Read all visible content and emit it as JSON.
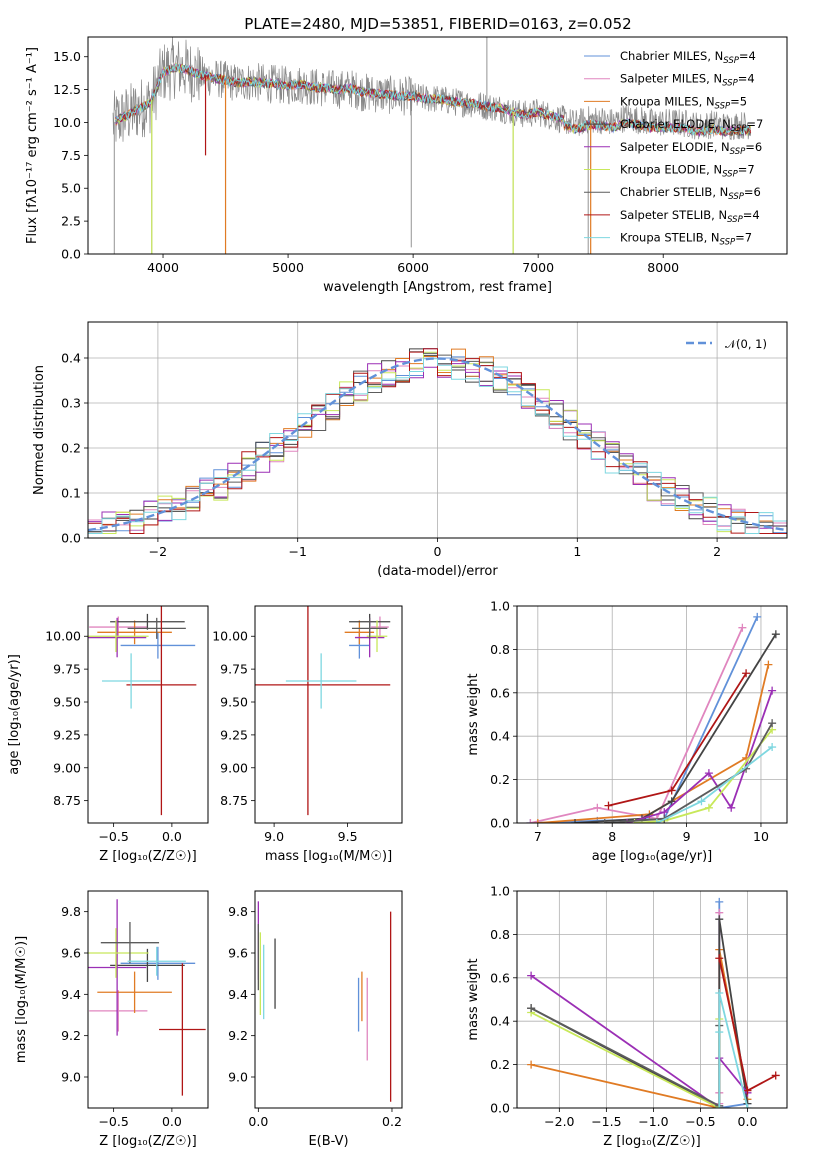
{
  "figure": {
    "title": "PLATE=2480, MJD=53851, FIBERID=0163, z=0.052"
  },
  "colors": {
    "series": [
      "#6191d9",
      "#e086bf",
      "#e07b24",
      "#444444",
      "#9b2fb5",
      "#c8e85a",
      "#5c5c5c",
      "#b01616",
      "#7ed7e0"
    ],
    "grid": "#b0b0b0",
    "normal_line": "#6191d9"
  },
  "chart_data": [
    {
      "id": "spectrum",
      "type": "line",
      "title": "PLATE=2480, MJD=53851, FIBERID=0163, z=0.052",
      "xlabel": "wavelength [Angstrom, rest frame]",
      "ylabel": "Flux [fλ10⁻¹⁷ erg cm⁻² s⁻¹ A⁻¹]",
      "xlim": [
        3400,
        8990
      ],
      "ylim": [
        0,
        16.5
      ],
      "xticks": [
        "4000",
        "5000",
        "6000",
        "7000",
        "8000"
      ],
      "yticks": [
        "0.0",
        "2.5",
        "5.0",
        "7.5",
        "10.0",
        "12.5",
        "15.0"
      ],
      "grid": false,
      "legend_position": "top-right",
      "legend": [
        "Chabrier MILES, NSSP=4",
        "Salpeter MILES, NSSP=4",
        "Kroupa MILES, NSSP=5",
        "Chabrier ELODIE, NSSP=7",
        "Salpeter ELODIE, NSSP=6",
        "Kroupa ELODIE, NSSP=7",
        "Chabrier STELIB, NSSP=6",
        "Salpeter STELIB, NSSP=4",
        "Kroupa STELIB, NSSP=7"
      ],
      "data_series": {
        "name": "data",
        "color": "#888888",
        "x": [
          3600,
          3700,
          3800,
          3900,
          4000,
          4100,
          4200,
          4300,
          4400,
          4500,
          4600,
          4700,
          4800,
          4900,
          5000,
          5100,
          5200,
          5300,
          5400,
          5500,
          5600,
          5700,
          5800,
          5900,
          6000,
          6100,
          6200,
          6300,
          6400,
          6500,
          6600,
          6700,
          6800,
          6900,
          7000,
          7100,
          7200,
          7300,
          7400,
          7500,
          7600,
          7700,
          7800,
          7900,
          8000,
          8100,
          8200,
          8300,
          8400,
          8500,
          8600,
          8700
        ],
        "y": [
          10.0,
          10.5,
          11.0,
          11.5,
          13.8,
          14.2,
          14.0,
          13.6,
          13.4,
          13.2,
          13.0,
          13.1,
          13.0,
          12.9,
          12.8,
          12.9,
          12.7,
          12.6,
          12.5,
          12.6,
          12.3,
          12.2,
          12.1,
          12.0,
          12.0,
          11.8,
          11.8,
          11.6,
          11.5,
          11.4,
          11.2,
          11.1,
          10.8,
          10.6,
          10.8,
          10.5,
          10.2,
          9.9,
          10.2,
          10.2,
          10.0,
          10.4,
          10.2,
          10.0,
          10.0,
          10.0,
          9.9,
          9.7,
          9.9,
          9.7,
          9.8,
          9.8
        ]
      },
      "spikes": [
        {
          "x": 3610,
          "y": 0.0
        },
        {
          "x": 3910,
          "y": 0.0
        },
        {
          "x": 4500,
          "y": 0.0
        },
        {
          "x": 5985,
          "y": 0.5
        },
        {
          "x": 6590,
          "y": 16.5
        },
        {
          "x": 6800,
          "y": 0.0
        },
        {
          "x": 7400,
          "y": 0.0
        }
      ]
    },
    {
      "id": "residuals",
      "type": "histogram",
      "xlabel": "(data-model)/error",
      "ylabel": "Normed distribution",
      "xlim": [
        -2.5,
        2.5
      ],
      "ylim": [
        0,
        0.48
      ],
      "xticks": [
        "−2",
        "−1",
        "0",
        "1",
        "2"
      ],
      "yticks": [
        "0.0",
        "0.1",
        "0.2",
        "0.3",
        "0.4"
      ],
      "grid": true,
      "legend_position": "top-right",
      "legend": [
        "𝒩(0, 1)"
      ],
      "bin_width": 0.1,
      "bin_start": -2.5
    },
    {
      "id": "age_vs_Z",
      "type": "errorbar",
      "xlabel": "Z [log₁₀(Z/Z☉)]",
      "ylabel": "age  [log₁₀(age/yr)]",
      "xlim": [
        -0.72,
        0.31
      ],
      "ylim": [
        8.58,
        10.23
      ],
      "xticks": [
        "−0.5",
        "0.0"
      ],
      "yticks": [
        "8.75",
        "9.00",
        "9.25",
        "9.50",
        "9.75",
        "10.00"
      ],
      "points": [
        {
          "x": -0.12,
          "xerr": 0.32,
          "y": 9.93,
          "yerr": 0.1
        },
        {
          "x": -0.46,
          "xerr": 0.25,
          "y": 10.07,
          "yerr": 0.08
        },
        {
          "x": -0.32,
          "xerr": 0.32,
          "y": 10.03,
          "yerr": 0.09
        },
        {
          "x": -0.21,
          "xerr": 0.32,
          "y": 10.11,
          "yerr": 0.06
        },
        {
          "x": -0.47,
          "xerr": 0.25,
          "y": 9.99,
          "yerr": 0.15
        },
        {
          "x": -0.48,
          "xerr": 0.28,
          "y": 10.0,
          "yerr": 0.12
        },
        {
          "x": -0.13,
          "xerr": 0.25,
          "y": 10.06,
          "yerr": 0.08
        },
        {
          "x": -0.09,
          "xerr": 0.3,
          "y": 9.63,
          "yerr": 0.99
        },
        {
          "x": -0.35,
          "xerr": 0.25,
          "y": 9.66,
          "yerr": 0.21
        }
      ]
    },
    {
      "id": "age_vs_mass",
      "type": "errorbar",
      "xlabel": "mass [log₁₀(M/M☉)]",
      "ylabel": "",
      "xlim": [
        8.87,
        9.87
      ],
      "ylim": [
        8.58,
        10.23
      ],
      "xticks": [
        "9.0",
        "9.5"
      ],
      "yticks": [
        "8.75",
        "9.00",
        "9.25",
        "9.50",
        "9.75",
        "10.00"
      ],
      "points": [
        {
          "x": 9.58,
          "xerr": 0.07,
          "y": 9.93,
          "yerr": 0.1
        },
        {
          "x": 9.72,
          "xerr": 0.06,
          "y": 10.07,
          "yerr": 0.08
        },
        {
          "x": 9.58,
          "xerr": 0.1,
          "y": 10.03,
          "yerr": 0.09
        },
        {
          "x": 9.65,
          "xerr": 0.14,
          "y": 10.11,
          "yerr": 0.06
        },
        {
          "x": 9.65,
          "xerr": 0.1,
          "y": 9.99,
          "yerr": 0.15
        },
        {
          "x": 9.7,
          "xerr": 0.07,
          "y": 10.0,
          "yerr": 0.12
        },
        {
          "x": 9.65,
          "xerr": 0.12,
          "y": 10.06,
          "yerr": 0.08
        },
        {
          "x": 9.23,
          "xerr": 0.56,
          "y": 9.63,
          "yerr": 0.99
        },
        {
          "x": 9.32,
          "xerr": 0.24,
          "y": 9.66,
          "yerr": 0.21
        }
      ]
    },
    {
      "id": "mass_weight_vs_age",
      "type": "line",
      "xlabel": "age  [log₁₀(age/yr)]",
      "ylabel": "mass weight",
      "xlim": [
        6.72,
        10.35
      ],
      "ylim": [
        0,
        1.0
      ],
      "xticks": [
        "7",
        "8",
        "9",
        "10"
      ],
      "yticks": [
        "0.0",
        "0.2",
        "0.4",
        "0.6",
        "0.8",
        "1.0"
      ],
      "grid": true,
      "series": [
        {
          "x": [
            6.9,
            7.8,
            8.7,
            9.95
          ],
          "y": [
            0.0,
            0.01,
            0.02,
            0.95
          ]
        },
        {
          "x": [
            6.9,
            7.8,
            8.6,
            9.75
          ],
          "y": [
            0.0,
            0.07,
            0.02,
            0.9
          ]
        },
        {
          "x": [
            7.0,
            8.5,
            9.8,
            10.1
          ],
          "y": [
            0.0,
            0.04,
            0.3,
            0.73
          ]
        },
        {
          "x": [
            7.5,
            8.4,
            8.8,
            10.2
          ],
          "y": [
            0.0,
            0.02,
            0.1,
            0.87
          ]
        },
        {
          "x": [
            8.2,
            8.7,
            9.3,
            9.6,
            10.15
          ],
          "y": [
            0.0,
            0.05,
            0.23,
            0.07,
            0.61
          ]
        },
        {
          "x": [
            8.3,
            8.7,
            9.3,
            10.15
          ],
          "y": [
            0.0,
            0.01,
            0.07,
            0.43
          ]
        },
        {
          "x": [
            7.9,
            8.7,
            9.8,
            10.15
          ],
          "y": [
            0.0,
            0.02,
            0.25,
            0.46
          ]
        },
        {
          "x": [
            7.95,
            8.8,
            9.8
          ],
          "y": [
            0.08,
            0.15,
            0.69
          ]
        },
        {
          "x": [
            8.6,
            9.2,
            10.15
          ],
          "y": [
            0.0,
            0.1,
            0.35
          ]
        }
      ]
    },
    {
      "id": "mass_vs_Z",
      "type": "errorbar",
      "xlabel": "Z [log₁₀(Z/Z☉)]",
      "ylabel": "mass [log₁₀(M/M☉)]",
      "xlim": [
        -0.72,
        0.31
      ],
      "ylim": [
        8.85,
        9.9
      ],
      "xticks": [
        "−0.5",
        "0.0"
      ],
      "yticks": [
        "9.0",
        "9.2",
        "9.4",
        "9.6",
        "9.8"
      ],
      "points": [
        {
          "x": -0.12,
          "xerr": 0.32,
          "y": 9.55,
          "yerr": 0.08
        },
        {
          "x": -0.46,
          "xerr": 0.25,
          "y": 9.32,
          "yerr": 0.1
        },
        {
          "x": -0.32,
          "xerr": 0.32,
          "y": 9.41,
          "yerr": 0.1
        },
        {
          "x": -0.21,
          "xerr": 0.32,
          "y": 9.54,
          "yerr": 0.08
        },
        {
          "x": -0.47,
          "xerr": 0.25,
          "y": 9.53,
          "yerr": 0.33
        },
        {
          "x": -0.48,
          "xerr": 0.28,
          "y": 9.6,
          "yerr": 0.12
        },
        {
          "x": -0.36,
          "xerr": 0.25,
          "y": 9.65,
          "yerr": 0.1
        },
        {
          "x": 0.09,
          "xerr": 0.2,
          "y": 9.23,
          "yerr": 0.32
        },
        {
          "x": -0.13,
          "xerr": 0.25,
          "y": 9.56,
          "yerr": 0.07
        }
      ]
    },
    {
      "id": "mass_vs_EBV",
      "type": "errorbar",
      "xlabel": "E(B-V)",
      "ylabel": "",
      "xlim": [
        -0.005,
        0.215
      ],
      "ylim": [
        8.85,
        9.9
      ],
      "xticks": [
        "0.0",
        "0.2"
      ],
      "yticks": [
        "9.0",
        "9.2",
        "9.4",
        "9.6",
        "9.8"
      ],
      "points": [
        {
          "x": 0.15,
          "xerr": 0,
          "y": 9.35,
          "yerr": 0.13
        },
        {
          "x": 0.163,
          "xerr": 0,
          "y": 9.28,
          "yerr": 0.2
        },
        {
          "x": 0.155,
          "xerr": 0,
          "y": 9.39,
          "yerr": 0.12
        },
        {
          "x": 0.025,
          "xerr": 0,
          "y": 9.5,
          "yerr": 0.17
        },
        {
          "x": 0.0,
          "xerr": 0,
          "y": 9.66,
          "yerr": 0.19
        },
        {
          "x": 0.003,
          "xerr": 0,
          "y": 9.5,
          "yerr": 0.2
        },
        {
          "x": 0.0,
          "xerr": 0,
          "y": 9.58,
          "yerr": 0.16
        },
        {
          "x": 0.198,
          "xerr": 0,
          "y": 9.34,
          "yerr": 0.46
        },
        {
          "x": 0.008,
          "xerr": 0,
          "y": 9.46,
          "yerr": 0.18
        }
      ]
    },
    {
      "id": "mass_weight_vs_Z",
      "type": "line",
      "xlabel": "Z [log₁₀(Z/Z☉)]",
      "ylabel": "mass weight",
      "xlim": [
        -2.45,
        0.42
      ],
      "ylim": [
        0,
        1.0
      ],
      "xticks": [
        "−2.0",
        "−1.5",
        "−1.0",
        "−0.5",
        "0.0"
      ],
      "yticks": [
        "0.0",
        "0.2",
        "0.4",
        "0.6",
        "0.8",
        "1.0"
      ],
      "grid": true,
      "series": [
        {
          "x": [
            -0.3,
            -0.3,
            0.0
          ],
          "y": [
            0.95,
            0.0,
            0.02
          ]
        },
        {
          "x": [
            -0.3,
            -0.3,
            -0.3
          ],
          "y": [
            0.9,
            0.02,
            0.07
          ]
        },
        {
          "x": [
            -2.3,
            -0.3,
            -0.3,
            0.0
          ],
          "y": [
            0.2,
            0.0,
            0.73,
            0.04
          ]
        },
        {
          "x": [
            -2.3,
            -0.3,
            -0.3,
            0.0
          ],
          "y": [
            0.46,
            0.0,
            0.87,
            0.02
          ]
        },
        {
          "x": [
            -2.3,
            -0.3,
            -0.3,
            0.0
          ],
          "y": [
            0.61,
            0.0,
            0.23,
            0.07
          ]
        },
        {
          "x": [
            -2.3,
            -0.3,
            -0.3
          ],
          "y": [
            0.44,
            0.0,
            0.41
          ]
        },
        {
          "x": [
            -2.3,
            -0.3,
            -0.3
          ],
          "y": [
            0.46,
            0.01,
            0.38
          ]
        },
        {
          "x": [
            -0.3,
            0.0,
            0.3
          ],
          "y": [
            0.69,
            0.08,
            0.15
          ]
        },
        {
          "x": [
            -0.3,
            -0.3,
            -0.3,
            0.0
          ],
          "y": [
            0.35,
            0.0,
            0.53,
            0.0
          ]
        }
      ]
    }
  ]
}
